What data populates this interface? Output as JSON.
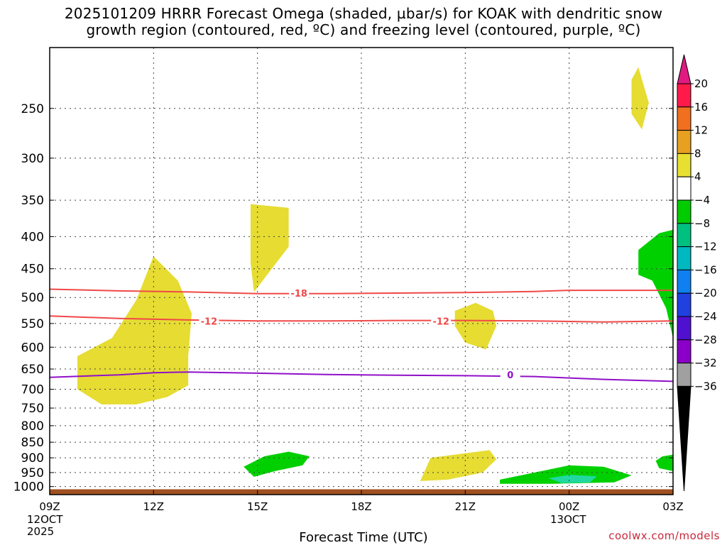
{
  "title": {
    "line1": "2025101209 HRRR Forecast Omega (shaded, µbar/s) for KOAK with dendritic snow",
    "line2": "growth region (contoured, red, ºC) and freezing level (contoured, purple, ºC)"
  },
  "credit": "coolwx.com/models",
  "chart_data": {
    "type": "contour",
    "xlabel": "Forecast Time (UTC)",
    "ylabel": "",
    "x_ticks": [
      "09Z",
      "12Z",
      "15Z",
      "18Z",
      "21Z",
      "00Z",
      "03Z"
    ],
    "x_tick_hours": [
      0,
      3,
      6,
      9,
      12,
      15,
      18
    ],
    "x_date_labels": [
      {
        "hour": 0,
        "lines": [
          "12OCT",
          "2025"
        ]
      },
      {
        "hour": 15,
        "lines": [
          "13OCT"
        ]
      }
    ],
    "xlim": [
      0,
      18
    ],
    "y_ticks": [
      250,
      300,
      350,
      400,
      450,
      500,
      550,
      600,
      650,
      700,
      750,
      800,
      850,
      900,
      950,
      1000
    ],
    "ylim": [
      1030,
      200
    ],
    "y_scale": "log-pressure",
    "grid": true,
    "colorbar": {
      "labels": [
        20,
        16,
        12,
        8,
        4,
        -4,
        -8,
        -12,
        -16,
        -20,
        -24,
        -28,
        -32,
        -36
      ],
      "colors": [
        "#ff1a4a",
        "#f07020",
        "#e8a020",
        "#e8e030",
        "#ffffff",
        "#00cc00",
        "#00c080",
        "#00b8c0",
        "#1080f0",
        "#2040e0",
        "#5010d0",
        "#8a00c8",
        "#a0a0a0"
      ],
      "top_arrow_color": "#e01a80",
      "bottom_arrow_color": "#000000"
    },
    "omega_regions": [
      {
        "fill": "yellow",
        "value_range": "4 to 8",
        "points": [
          [
            0.8,
            620
          ],
          [
            1.8,
            580
          ],
          [
            2.5,
            505
          ],
          [
            3.0,
            430
          ],
          [
            3.7,
            470
          ],
          [
            4.1,
            530
          ],
          [
            4.0,
            620
          ],
          [
            4.0,
            690
          ],
          [
            3.4,
            720
          ],
          [
            2.5,
            740
          ],
          [
            1.5,
            740
          ],
          [
            0.8,
            700
          ],
          [
            0.8,
            620
          ]
        ]
      },
      {
        "fill": "yellow",
        "value_range": "4 to 8",
        "points": [
          [
            5.8,
            355
          ],
          [
            6.9,
            360
          ],
          [
            6.9,
            415
          ],
          [
            5.9,
            490
          ],
          [
            5.8,
            440
          ],
          [
            5.8,
            355
          ]
        ]
      },
      {
        "fill": "yellow",
        "value_range": "4 to 8",
        "points": [
          [
            11.7,
            525
          ],
          [
            12.3,
            510
          ],
          [
            12.8,
            525
          ],
          [
            12.9,
            555
          ],
          [
            12.6,
            605
          ],
          [
            12.0,
            590
          ],
          [
            11.7,
            555
          ],
          [
            11.7,
            525
          ]
        ]
      },
      {
        "fill": "yellow",
        "value_range": "4 to 8",
        "points": [
          [
            16.8,
            225
          ],
          [
            17.0,
            215
          ],
          [
            17.3,
            245
          ],
          [
            17.1,
            270
          ],
          [
            16.8,
            255
          ],
          [
            16.8,
            225
          ]
        ]
      },
      {
        "fill": "yellow",
        "value_range": "4 to 8",
        "points": [
          [
            11.0,
            900
          ],
          [
            12.0,
            885
          ],
          [
            12.7,
            875
          ],
          [
            12.9,
            905
          ],
          [
            12.5,
            950
          ],
          [
            11.5,
            975
          ],
          [
            10.7,
            980
          ],
          [
            11.0,
            900
          ]
        ]
      },
      {
        "fill": "green",
        "value_range": "-4 to -8",
        "points": [
          [
            5.6,
            930
          ],
          [
            6.2,
            895
          ],
          [
            6.9,
            880
          ],
          [
            7.5,
            895
          ],
          [
            7.3,
            925
          ],
          [
            6.5,
            945
          ],
          [
            5.9,
            965
          ],
          [
            5.6,
            930
          ]
        ]
      },
      {
        "fill": "green",
        "value_range": "-4 to -8",
        "points": [
          [
            13.0,
            975
          ],
          [
            14.0,
            950
          ],
          [
            15.0,
            925
          ],
          [
            16.0,
            930
          ],
          [
            16.8,
            960
          ],
          [
            16.3,
            985
          ],
          [
            14.5,
            990
          ],
          [
            13.0,
            990
          ],
          [
            13.0,
            975
          ]
        ]
      },
      {
        "fill": "teal",
        "value_range": "-8 to -12",
        "points": [
          [
            14.4,
            970
          ],
          [
            15.0,
            958
          ],
          [
            15.8,
            963
          ],
          [
            15.6,
            985
          ],
          [
            14.8,
            988
          ],
          [
            14.4,
            970
          ]
        ]
      },
      {
        "fill": "green",
        "value_range": "-4 to -8",
        "points": [
          [
            17.0,
            420
          ],
          [
            17.6,
            395
          ],
          [
            18.0,
            390
          ],
          [
            18.0,
            580
          ],
          [
            17.8,
            520
          ],
          [
            17.4,
            470
          ],
          [
            17.0,
            460
          ],
          [
            17.0,
            420
          ]
        ]
      },
      {
        "fill": "green",
        "value_range": "-4 to -8",
        "points": [
          [
            17.5,
            910
          ],
          [
            17.7,
            895
          ],
          [
            18.0,
            890
          ],
          [
            18.0,
            945
          ],
          [
            17.6,
            935
          ],
          [
            17.5,
            910
          ]
        ]
      }
    ],
    "contours": [
      {
        "name": "dendritic -18",
        "color": "red",
        "label": "-18",
        "label_at": [
          7.2,
          492
        ],
        "points": [
          [
            0,
            485
          ],
          [
            2,
            488
          ],
          [
            4,
            490
          ],
          [
            6,
            493
          ],
          [
            8,
            493
          ],
          [
            10,
            492
          ],
          [
            12,
            491
          ],
          [
            14,
            489
          ],
          [
            15,
            487
          ],
          [
            16,
            487
          ],
          [
            18,
            487
          ]
        ]
      },
      {
        "name": "dendritic -12",
        "color": "red",
        "label": "-12",
        "labels_at": [
          [
            4.6,
            545
          ],
          [
            11.3,
            545
          ]
        ],
        "points": [
          [
            0,
            535
          ],
          [
            2,
            540
          ],
          [
            4,
            543
          ],
          [
            6,
            545
          ],
          [
            8,
            545
          ],
          [
            10,
            544
          ],
          [
            12,
            544
          ],
          [
            14,
            545
          ],
          [
            16,
            547
          ],
          [
            18,
            545
          ]
        ]
      },
      {
        "name": "freezing level 0",
        "color": "purple",
        "label": "0",
        "label_at": [
          13.3,
          664
        ],
        "points": [
          [
            0,
            670
          ],
          [
            2,
            664
          ],
          [
            3,
            659
          ],
          [
            4,
            657
          ],
          [
            6,
            660
          ],
          [
            8,
            663
          ],
          [
            10,
            665
          ],
          [
            12,
            666
          ],
          [
            14,
            668
          ],
          [
            16,
            675
          ],
          [
            18,
            680
          ]
        ]
      }
    ],
    "ground": {
      "color": "#a05020",
      "from_pressure": 1010
    }
  }
}
